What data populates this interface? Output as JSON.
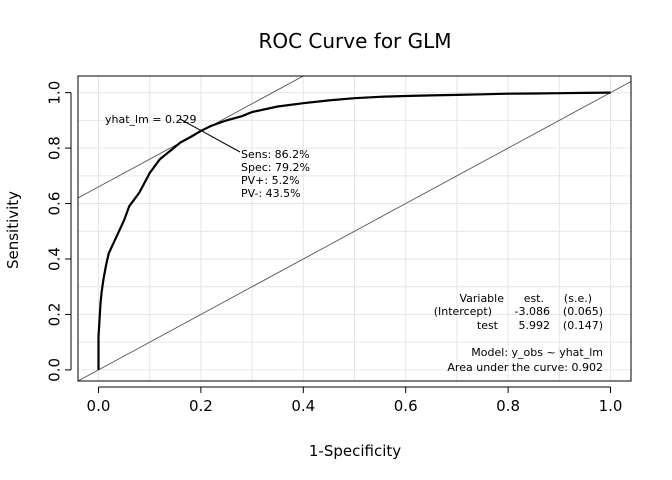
{
  "chart_data": {
    "type": "line",
    "title": "ROC Curve for GLM",
    "xlabel": "1-Specificity",
    "ylabel": "Sensitivity",
    "xlim": [
      -0.04,
      1.04
    ],
    "ylim": [
      -0.04,
      1.06
    ],
    "xticks": [
      0.0,
      0.2,
      0.4,
      0.6,
      0.8,
      1.0
    ],
    "xtick_labels": [
      "0.0",
      "0.2",
      "0.4",
      "0.6",
      "0.8",
      "1.0"
    ],
    "yticks": [
      0.0,
      0.2,
      0.4,
      0.6,
      0.8,
      1.0
    ],
    "ytick_labels": [
      "0.0",
      "0.2",
      "0.4",
      "0.6",
      "0.8",
      "1.0"
    ],
    "grid": true,
    "series": [
      {
        "x": [
          0.0,
          0.0,
          0.002,
          0.004,
          0.006,
          0.01,
          0.015,
          0.02,
          0.025,
          0.03,
          0.04,
          0.05,
          0.06,
          0.08,
          0.1,
          0.12,
          0.14,
          0.16,
          0.18,
          0.2,
          0.22,
          0.25,
          0.28,
          0.3,
          0.35,
          0.4,
          0.45,
          0.5,
          0.55,
          0.6,
          0.65,
          0.7,
          0.75,
          0.8,
          0.85,
          0.9,
          0.95,
          1.0
        ],
        "y": [
          0.0,
          0.12,
          0.18,
          0.24,
          0.28,
          0.33,
          0.38,
          0.42,
          0.44,
          0.46,
          0.5,
          0.54,
          0.59,
          0.64,
          0.71,
          0.76,
          0.79,
          0.82,
          0.84,
          0.862,
          0.88,
          0.9,
          0.915,
          0.93,
          0.95,
          0.962,
          0.972,
          0.98,
          0.985,
          0.988,
          0.99,
          0.992,
          0.994,
          0.996,
          0.997,
          0.998,
          0.999,
          1.0
        ]
      }
    ],
    "reference_lines": {
      "diagonal": {
        "intercept": 0,
        "slope": 1
      },
      "tangent": {
        "intercept": 0.66,
        "slope": 1
      }
    },
    "threshold_point": {
      "x": 0.208,
      "y": 0.862
    },
    "annotations": {
      "threshold_label": "yhat_lm = 0.229",
      "sens": "Sens: 86.2%",
      "spec": "Spec: 79.2%",
      "pvpos": "PV+: 5.2%",
      "pvneg": "PV-: 43.5%",
      "coef_header": {
        "variable": "Variable",
        "est": "est.",
        "se": "(s.e.)"
      },
      "coef_rows": [
        {
          "variable": "(Intercept)",
          "est": "-3.086",
          "se": "(0.065)"
        },
        {
          "variable": "test",
          "est": "5.992",
          "se": "(0.147)"
        }
      ],
      "model": "Model:  y_obs ~ yhat_lm",
      "auc": "Area under the curve: 0.902"
    }
  }
}
